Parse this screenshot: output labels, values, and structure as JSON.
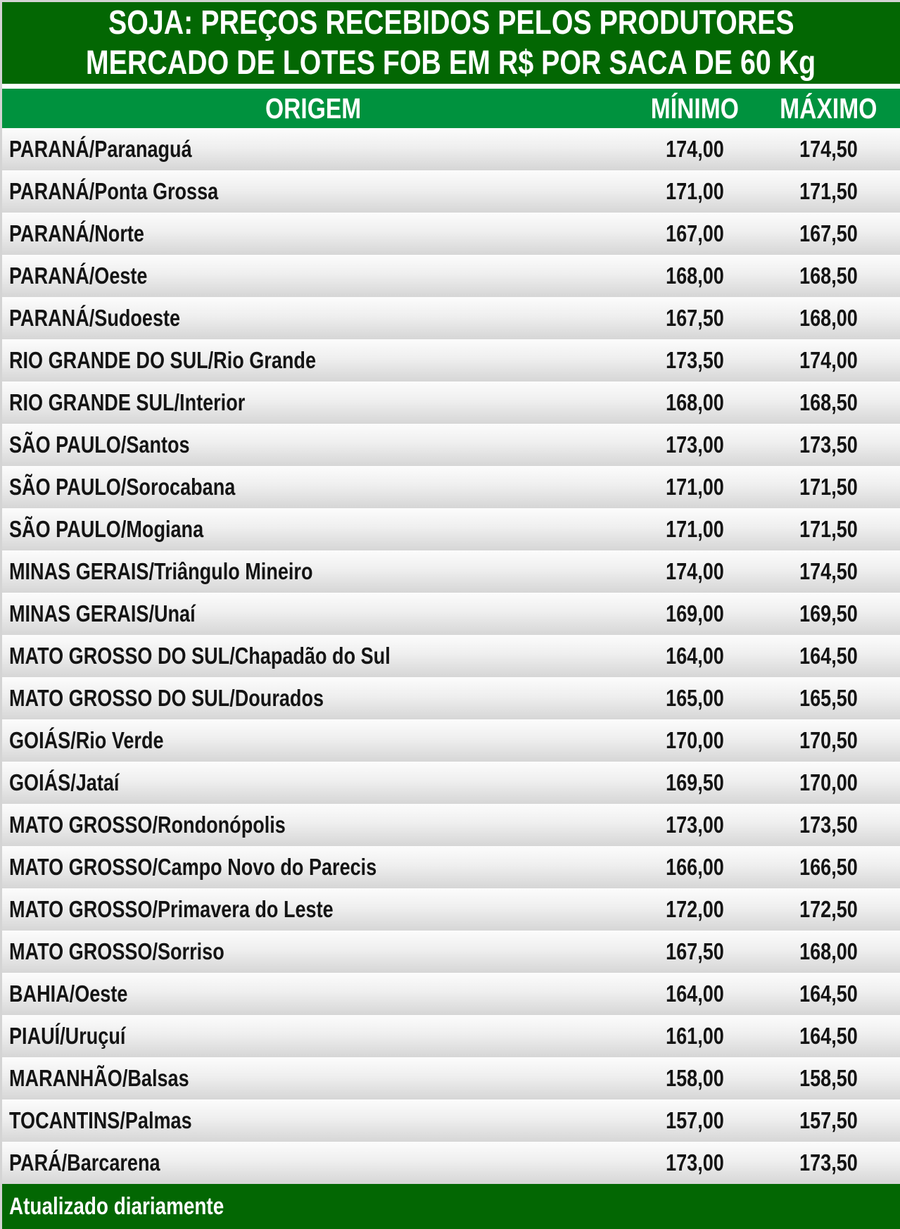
{
  "title": {
    "line1": "SOJA: PREÇOS RECEBIDOS PELOS PRODUTORES",
    "line2": "MERCADO DE LOTES FOB EM R$ POR SACA DE 60 Kg"
  },
  "table": {
    "columns": [
      "ORIGEM",
      "MÍNIMO",
      "MÁXIMO"
    ],
    "rows": [
      {
        "origem": "PARANÁ/Paranaguá",
        "minimo": "174,00",
        "maximo": "174,50"
      },
      {
        "origem": "PARANÁ/Ponta Grossa",
        "minimo": "171,00",
        "maximo": "171,50"
      },
      {
        "origem": "PARANÁ/Norte",
        "minimo": "167,00",
        "maximo": "167,50"
      },
      {
        "origem": "PARANÁ/Oeste",
        "minimo": "168,00",
        "maximo": "168,50"
      },
      {
        "origem": "PARANÁ/Sudoeste",
        "minimo": "167,50",
        "maximo": "168,00"
      },
      {
        "origem": "RIO GRANDE DO SUL/Rio Grande",
        "minimo": "173,50",
        "maximo": "174,00"
      },
      {
        "origem": "RIO GRANDE SUL/Interior",
        "minimo": "168,00",
        "maximo": "168,50"
      },
      {
        "origem": "SÃO PAULO/Santos",
        "minimo": "173,00",
        "maximo": "173,50"
      },
      {
        "origem": "SÃO PAULO/Sorocabana",
        "minimo": "171,00",
        "maximo": "171,50"
      },
      {
        "origem": "SÃO PAULO/Mogiana",
        "minimo": "171,00",
        "maximo": "171,50"
      },
      {
        "origem": "MINAS GERAIS/Triângulo Mineiro",
        "minimo": "174,00",
        "maximo": "174,50"
      },
      {
        "origem": "MINAS GERAIS/Unaí",
        "minimo": "169,00",
        "maximo": "169,50"
      },
      {
        "origem": "MATO GROSSO DO SUL/Chapadão do Sul",
        "minimo": "164,00",
        "maximo": "164,50"
      },
      {
        "origem": "MATO GROSSO DO SUL/Dourados",
        "minimo": "165,00",
        "maximo": "165,50"
      },
      {
        "origem": "GOIÁS/Rio Verde",
        "minimo": "170,00",
        "maximo": "170,50"
      },
      {
        "origem": "GOIÁS/Jataí",
        "minimo": "169,50",
        "maximo": "170,00"
      },
      {
        "origem": "MATO GROSSO/Rondonópolis",
        "minimo": "173,00",
        "maximo": "173,50"
      },
      {
        "origem": "MATO GROSSO/Campo Novo do Parecis",
        "minimo": "166,00",
        "maximo": "166,50"
      },
      {
        "origem": "MATO GROSSO/Primavera do Leste",
        "minimo": "172,00",
        "maximo": "172,50"
      },
      {
        "origem": "MATO GROSSO/Sorriso",
        "minimo": "167,50",
        "maximo": "168,00"
      },
      {
        "origem": "BAHIA/Oeste",
        "minimo": "164,00",
        "maximo": "164,50"
      },
      {
        "origem": "PIAUÍ/Uruçuí",
        "minimo": "161,00",
        "maximo": "164,50"
      },
      {
        "origem": "MARANHÃO/Balsas",
        "minimo": "158,00",
        "maximo": "158,50"
      },
      {
        "origem": "TOCANTINS/Palmas",
        "minimo": "157,00",
        "maximo": "157,50"
      },
      {
        "origem": "PARÁ/Barcarena",
        "minimo": "173,00",
        "maximo": "173,50"
      }
    ]
  },
  "footer": {
    "text": "Atualizado diariamente"
  },
  "colors": {
    "dark_green": "#036703",
    "band_green": "#00923e",
    "row_gradient_top": "#fcfcfc",
    "row_gradient_bottom": "#d6d6d6",
    "border_gray": "#d4d4d4",
    "text_dark": "#141414",
    "text_light": "#ffffff"
  },
  "chart_data": {
    "type": "table",
    "title": "SOJA: PREÇOS RECEBIDOS PELOS PRODUTORES",
    "subtitle": "MERCADO DE LOTES FOB EM R$ POR SACA DE 60 Kg",
    "unit": "R$ por saca de 60 Kg",
    "columns": [
      "ORIGEM",
      "MÍNIMO",
      "MÁXIMO"
    ],
    "rows": [
      [
        "PARANÁ/Paranaguá",
        174.0,
        174.5
      ],
      [
        "PARANÁ/Ponta Grossa",
        171.0,
        171.5
      ],
      [
        "PARANÁ/Norte",
        167.0,
        167.5
      ],
      [
        "PARANÁ/Oeste",
        168.0,
        168.5
      ],
      [
        "PARANÁ/Sudoeste",
        167.5,
        168.0
      ],
      [
        "RIO GRANDE DO SUL/Rio Grande",
        173.5,
        174.0
      ],
      [
        "RIO GRANDE SUL/Interior",
        168.0,
        168.5
      ],
      [
        "SÃO PAULO/Santos",
        173.0,
        173.5
      ],
      [
        "SÃO PAULO/Sorocabana",
        171.0,
        171.5
      ],
      [
        "SÃO PAULO/Mogiana",
        171.0,
        171.5
      ],
      [
        "MINAS GERAIS/Triângulo Mineiro",
        174.0,
        174.5
      ],
      [
        "MINAS GERAIS/Unaí",
        169.0,
        169.5
      ],
      [
        "MATO GROSSO DO SUL/Chapadão do Sul",
        164.0,
        164.5
      ],
      [
        "MATO GROSSO DO SUL/Dourados",
        165.0,
        165.5
      ],
      [
        "GOIÁS/Rio Verde",
        170.0,
        170.5
      ],
      [
        "GOIÁS/Jataí",
        169.5,
        170.0
      ],
      [
        "MATO GROSSO/Rondonópolis",
        173.0,
        173.5
      ],
      [
        "MATO GROSSO/Campo Novo do Parecis",
        166.0,
        166.5
      ],
      [
        "MATO GROSSO/Primavera do Leste",
        172.0,
        172.5
      ],
      [
        "MATO GROSSO/Sorriso",
        167.5,
        168.0
      ],
      [
        "BAHIA/Oeste",
        164.0,
        164.5
      ],
      [
        "PIAUÍ/Uruçuí",
        161.0,
        164.5
      ],
      [
        "MARANHÃO/Balsas",
        158.0,
        158.5
      ],
      [
        "TOCANTINS/Palmas",
        157.0,
        157.5
      ],
      [
        "PARÁ/Barcarena",
        173.0,
        173.5
      ]
    ],
    "note": "Atualizado diariamente"
  }
}
